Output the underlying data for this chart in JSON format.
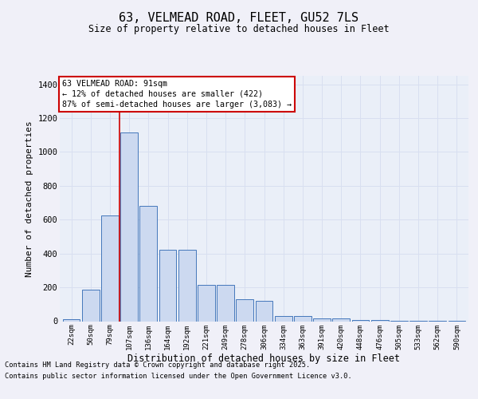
{
  "title1": "63, VELMEAD ROAD, FLEET, GU52 7LS",
  "title2": "Size of property relative to detached houses in Fleet",
  "xlabel": "Distribution of detached houses by size in Fleet",
  "ylabel": "Number of detached properties",
  "categories": [
    "22sqm",
    "50sqm",
    "79sqm",
    "107sqm",
    "136sqm",
    "164sqm",
    "192sqm",
    "221sqm",
    "249sqm",
    "278sqm",
    "306sqm",
    "334sqm",
    "363sqm",
    "391sqm",
    "420sqm",
    "448sqm",
    "476sqm",
    "505sqm",
    "533sqm",
    "562sqm",
    "590sqm"
  ],
  "values": [
    12,
    185,
    625,
    1115,
    680,
    420,
    420,
    215,
    215,
    130,
    120,
    32,
    32,
    15,
    15,
    5,
    5,
    2,
    2,
    1,
    1
  ],
  "bar_color": "#ccd9f0",
  "bar_edge_color": "#4477bb",
  "grid_color": "#d8dff0",
  "bg_color": "#eaeff8",
  "red_line_x": 2.5,
  "annotation_text": "63 VELMEAD ROAD: 91sqm\n← 12% of detached houses are smaller (422)\n87% of semi-detached houses are larger (3,083) →",
  "annotation_box_color": "#ffffff",
  "annotation_box_edge": "#cc0000",
  "annotation_text_color": "#000000",
  "footer1": "Contains HM Land Registry data © Crown copyright and database right 2025.",
  "footer2": "Contains public sector information licensed under the Open Government Licence v3.0.",
  "fig_bg": "#f0f0f8",
  "ylim": [
    0,
    1450
  ],
  "yticks": [
    0,
    200,
    400,
    600,
    800,
    1000,
    1200,
    1400
  ]
}
